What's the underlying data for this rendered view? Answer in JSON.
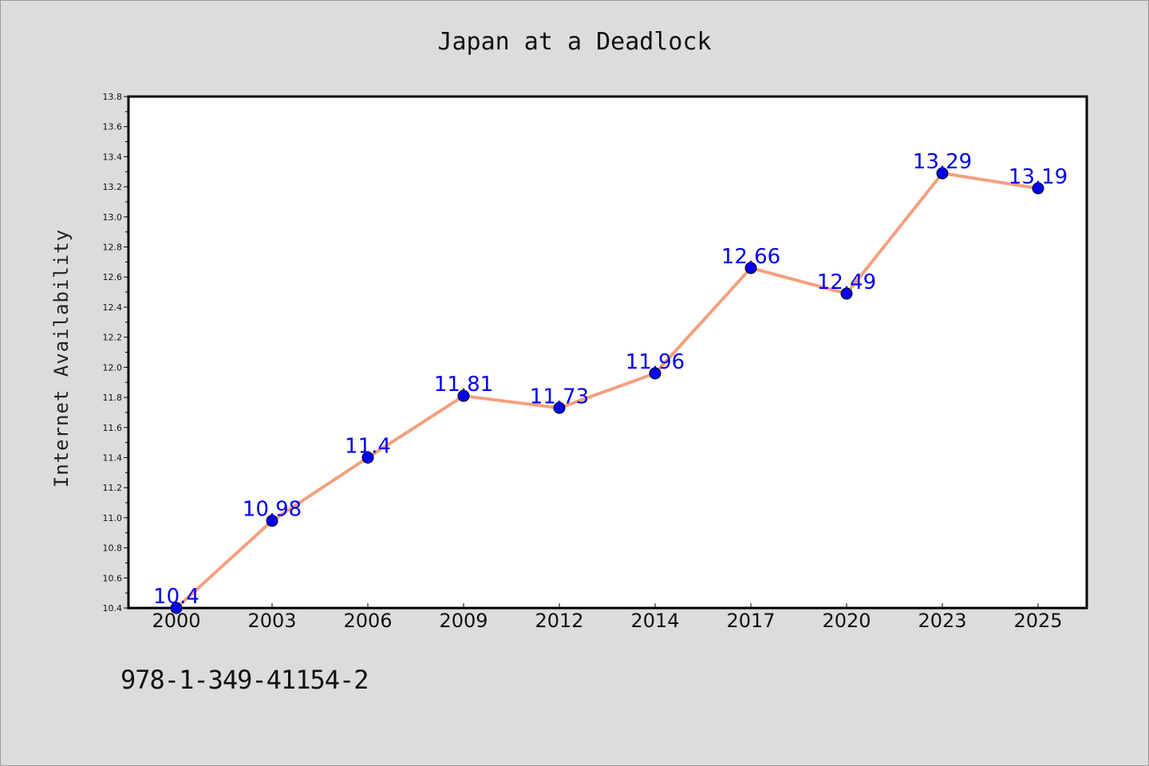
{
  "figure": {
    "title": "Japan at a Deadlock",
    "ylabel": "Internet Availability",
    "footer_code": "978-1-349-41154-2",
    "background_color": "#dcdcdc",
    "plot_background_color": "#ffffff"
  },
  "chart_data": {
    "type": "line",
    "title": "Japan at a Deadlock",
    "xlabel": "",
    "ylabel": "Internet Availability",
    "categories": [
      "2000",
      "2003",
      "2006",
      "2009",
      "2012",
      "2014",
      "2017",
      "2020",
      "2023",
      "2025"
    ],
    "series": [
      {
        "values": [
          10.4,
          10.98,
          11.4,
          11.81,
          11.73,
          11.96,
          12.66,
          12.49,
          13.29,
          13.19
        ],
        "labels": [
          "10.4",
          "10.98",
          "11.4",
          "11.81",
          "11.73",
          "11.96",
          "12.66",
          "12.49",
          "13.29",
          "13.19"
        ],
        "line_color": "#f4a07e",
        "marker_color": "#0000ee",
        "label_color": "#0000ee"
      }
    ],
    "ylim": [
      10.4,
      13.8
    ],
    "yticks": [
      "10.4",
      "10.6",
      "10.8",
      "11.0",
      "11.2",
      "11.4",
      "11.6",
      "11.8",
      "12.0",
      "12.2",
      "12.4",
      "12.6",
      "12.8",
      "13.0",
      "13.2",
      "13.4",
      "13.6",
      "13.8"
    ],
    "grid": false,
    "legend": "none"
  }
}
